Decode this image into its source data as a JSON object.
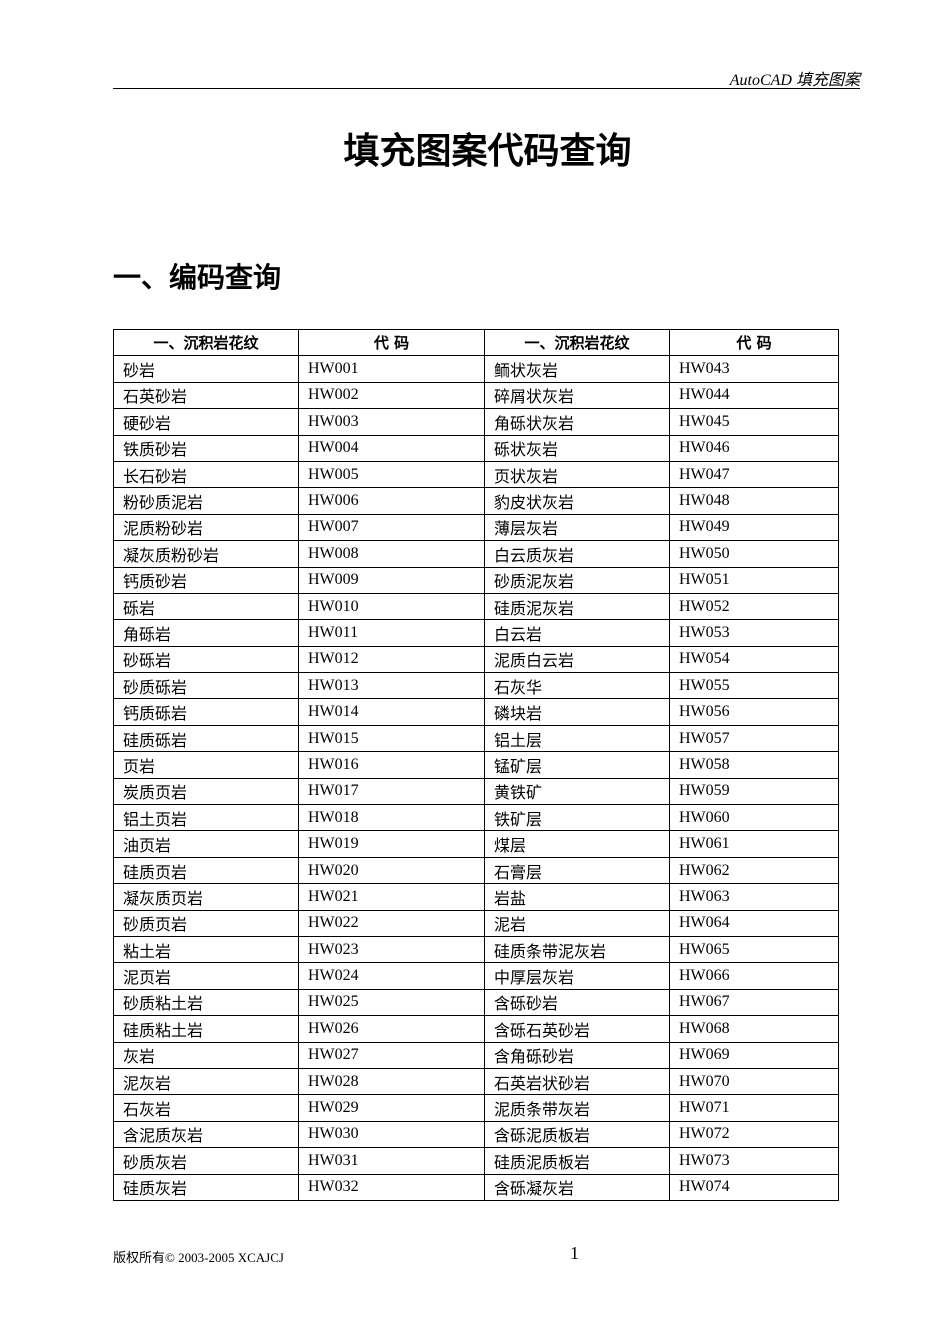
{
  "header": {
    "text": "AutoCAD 填充图案"
  },
  "title": "填充图案代码查询",
  "section": "一、编码查询",
  "table": {
    "headers": [
      "一、沉积岩花纹",
      "代  码",
      "一、沉积岩花纹",
      "代  码"
    ],
    "rows": [
      [
        "砂岩",
        "HW001",
        "鲕状灰岩",
        "HW043"
      ],
      [
        "石英砂岩",
        "HW002",
        "碎屑状灰岩",
        "HW044"
      ],
      [
        "硬砂岩",
        "HW003",
        "角砾状灰岩",
        "HW045"
      ],
      [
        "铁质砂岩",
        "HW004",
        "砾状灰岩",
        "HW046"
      ],
      [
        "长石砂岩",
        "HW005",
        "页状灰岩",
        "HW047"
      ],
      [
        "粉砂质泥岩",
        "HW006",
        "豹皮状灰岩",
        "HW048"
      ],
      [
        "泥质粉砂岩",
        "HW007",
        "薄层灰岩",
        "HW049"
      ],
      [
        "凝灰质粉砂岩",
        "HW008",
        "白云质灰岩",
        "HW050"
      ],
      [
        "钙质砂岩",
        "HW009",
        "砂质泥灰岩",
        "HW051"
      ],
      [
        "砾岩",
        "HW010",
        "硅质泥灰岩",
        "HW052"
      ],
      [
        "角砾岩",
        "HW011",
        "白云岩",
        "HW053"
      ],
      [
        "砂砾岩",
        "HW012",
        "泥质白云岩",
        "HW054"
      ],
      [
        "砂质砾岩",
        "HW013",
        "石灰华",
        "HW055"
      ],
      [
        "钙质砾岩",
        "HW014",
        "磷块岩",
        "HW056"
      ],
      [
        "硅质砾岩",
        "HW015",
        "铝土层",
        "HW057"
      ],
      [
        "页岩",
        "HW016",
        "锰矿层",
        "HW058"
      ],
      [
        "炭质页岩",
        "HW017",
        "黄铁矿",
        "HW059"
      ],
      [
        "铝土页岩",
        "HW018",
        "铁矿层",
        "HW060"
      ],
      [
        "油页岩",
        "HW019",
        "煤层",
        "HW061"
      ],
      [
        "硅质页岩",
        "HW020",
        "石膏层",
        "HW062"
      ],
      [
        "凝灰质页岩",
        "HW021",
        "岩盐",
        "HW063"
      ],
      [
        "砂质页岩",
        "HW022",
        "泥岩",
        "HW064"
      ],
      [
        "粘土岩",
        "HW023",
        "硅质条带泥灰岩",
        "HW065"
      ],
      [
        "泥页岩",
        "HW024",
        "中厚层灰岩",
        "HW066"
      ],
      [
        "砂质粘土岩",
        "HW025",
        "含砾砂岩",
        "HW067"
      ],
      [
        "硅质粘土岩",
        "HW026",
        "含砾石英砂岩",
        "HW068"
      ],
      [
        "灰岩",
        "HW027",
        "含角砾砂岩",
        "HW069"
      ],
      [
        "泥灰岩",
        "HW028",
        "石英岩状砂岩",
        "HW070"
      ],
      [
        "石灰岩",
        "HW029",
        "泥质条带灰岩",
        "HW071"
      ],
      [
        "含泥质灰岩",
        "HW030",
        "含砾泥质板岩",
        "HW072"
      ],
      [
        "砂质灰岩",
        "HW031",
        "硅质泥质板岩",
        "HW073"
      ],
      [
        "硅质灰岩",
        "HW032",
        "含砾凝灰岩",
        "HW074"
      ]
    ]
  },
  "footer": {
    "copyright": "版权所有© 2003-2005  XCAJCJ",
    "page_number": "1"
  }
}
